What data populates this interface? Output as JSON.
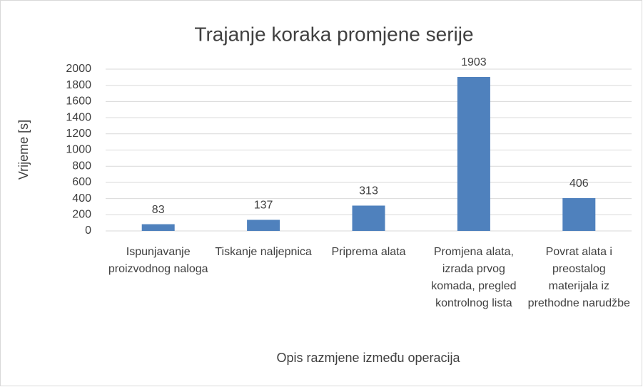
{
  "chart_data": {
    "type": "bar",
    "title": "Trajanje koraka promjene serije",
    "x_label": "Opis razmjene između operacija",
    "y_label": "Vrijeme [s]",
    "categories": [
      "Ispunjavanje proizvodnog naloga",
      "Tiskanje naljepnica",
      "Priprema alata",
      "Promjena alata, izrada prvog komada, pregled kontrolnog lista",
      "Povrat alata i preostalog materijala iz prethodne narudžbe"
    ],
    "values": [
      83,
      137,
      313,
      1903,
      406
    ],
    "color": "#4f81bd",
    "ylim": [
      0,
      2000
    ],
    "yticks": [
      0,
      200,
      400,
      600,
      800,
      1000,
      1200,
      1400,
      1600,
      1800,
      2000
    ],
    "grid": true
  }
}
